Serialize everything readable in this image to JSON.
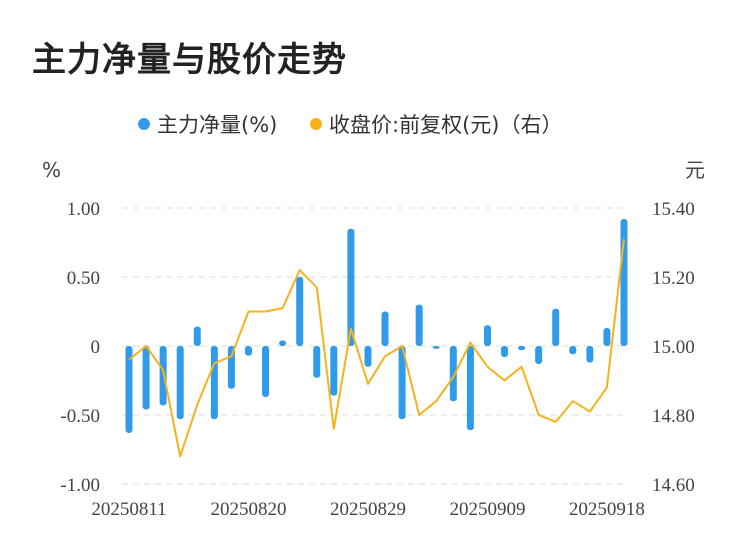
{
  "title": "主力净量与股价走势",
  "chart_data": {
    "type": "bar+line",
    "legend": [
      {
        "label": "主力净量(%)",
        "color": "#2f9bea"
      },
      {
        "label": "收盘价:前复权(元)（右）",
        "color": "#f5b21a"
      }
    ],
    "left_unit": "%",
    "right_unit": "元",
    "left_ticks": [
      "1.00",
      "0.50",
      "0",
      "-0.50",
      "-1.00"
    ],
    "right_ticks": [
      "15.40",
      "15.20",
      "15.00",
      "14.80",
      "14.60"
    ],
    "x_tick_labels": [
      "20250811",
      "20250820",
      "20250829",
      "20250909",
      "20250918"
    ],
    "y_left_range": [
      -1.0,
      1.0
    ],
    "y_right_range": [
      14.6,
      15.4
    ],
    "series": [
      {
        "name": "主力净量(%)",
        "type": "bar",
        "values": [
          -0.63,
          -0.46,
          -0.43,
          -0.53,
          0.14,
          -0.53,
          -0.31,
          -0.07,
          -0.37,
          0.04,
          0.5,
          -0.23,
          -0.36,
          0.85,
          -0.15,
          0.25,
          -0.53,
          0.3,
          -0.02,
          -0.4,
          -0.61,
          0.15,
          -0.08,
          -0.03,
          -0.13,
          0.27,
          -0.06,
          -0.12,
          0.13,
          0.92
        ]
      },
      {
        "name": "收盘价:前复权(元)（右）",
        "type": "line",
        "values": [
          14.96,
          15.0,
          14.93,
          14.68,
          14.83,
          14.95,
          14.97,
          15.1,
          15.1,
          15.11,
          15.22,
          15.17,
          14.76,
          15.05,
          14.89,
          14.97,
          15.0,
          14.8,
          14.84,
          14.91,
          15.01,
          14.94,
          14.9,
          14.94,
          14.8,
          14.78,
          14.84,
          14.81,
          14.88,
          15.31
        ]
      }
    ]
  }
}
